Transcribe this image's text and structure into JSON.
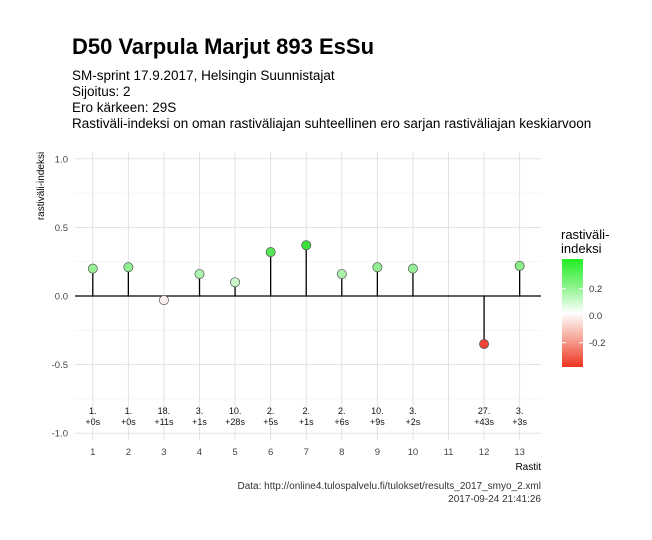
{
  "title": "D50 Varpula Marjut 893 EsSu",
  "subtitle": [
    "SM-sprint 17.9.2017, Helsingin Suunnistajat",
    "Sijoitus: 2",
    "Ero kärkeen: 29S",
    "Rastiväli-indeksi on oman rastiväliajan suhteellinen ero sarjan rastiväliajan keskiarvoon"
  ],
  "caption": [
    "Data: http://online4.tulospalvelu.fi/tulokset/results_2017_smyo_2.xml",
    "2017-09-24 21:41:26"
  ],
  "colors": {
    "high": "#22dd22",
    "mid": "#ffffff",
    "low": "#ee3322",
    "grid": "#e0e0e0",
    "stem": "#000000"
  },
  "chart_data": {
    "type": "lollipop",
    "xlabel": "Rastit",
    "ylabel": "rastiväli-indeksi",
    "xlim": [
      0.5,
      13.6
    ],
    "ylim": [
      -1.05,
      1.05
    ],
    "x_ticks": [
      1,
      2,
      3,
      4,
      5,
      6,
      7,
      8,
      9,
      10,
      11,
      12,
      13
    ],
    "y_ticks": [
      1.0,
      0.5,
      0.0,
      -0.5,
      -1.0
    ],
    "y_tick_labels": [
      "1.0",
      "0.5",
      "0.0",
      "-0.5",
      "-1.0"
    ],
    "grid": true,
    "points": [
      {
        "x": 1,
        "y": 0.2,
        "rank": "1.",
        "diff": "+0s"
      },
      {
        "x": 2,
        "y": 0.21,
        "rank": "1.",
        "diff": "+0s"
      },
      {
        "x": 3,
        "y": -0.03,
        "rank": "18.",
        "diff": "+11s"
      },
      {
        "x": 4,
        "y": 0.16,
        "rank": "3.",
        "diff": "+1s"
      },
      {
        "x": 5,
        "y": 0.1,
        "rank": "10.",
        "diff": "+28s"
      },
      {
        "x": 6,
        "y": 0.32,
        "rank": "2.",
        "diff": "+5s"
      },
      {
        "x": 7,
        "y": 0.37,
        "rank": "2.",
        "diff": "+1s"
      },
      {
        "x": 8,
        "y": 0.16,
        "rank": "2.",
        "diff": "+6s"
      },
      {
        "x": 9,
        "y": 0.21,
        "rank": "10.",
        "diff": "+9s"
      },
      {
        "x": 10,
        "y": 0.2,
        "rank": "3.",
        "diff": "+2s"
      },
      {
        "x": 12,
        "y": -0.35,
        "rank": "27.",
        "diff": "+43s"
      },
      {
        "x": 13,
        "y": 0.22,
        "rank": "3.",
        "diff": "+3s"
      }
    ],
    "legend": {
      "title_lines": [
        "rastiväli-",
        "indeksi"
      ],
      "range": [
        -0.38,
        0.42
      ],
      "ticks": [
        0.2,
        0.0,
        -0.2
      ],
      "tick_labels": [
        "0.2",
        "0.0",
        "-0.2"
      ],
      "position": "right"
    }
  }
}
